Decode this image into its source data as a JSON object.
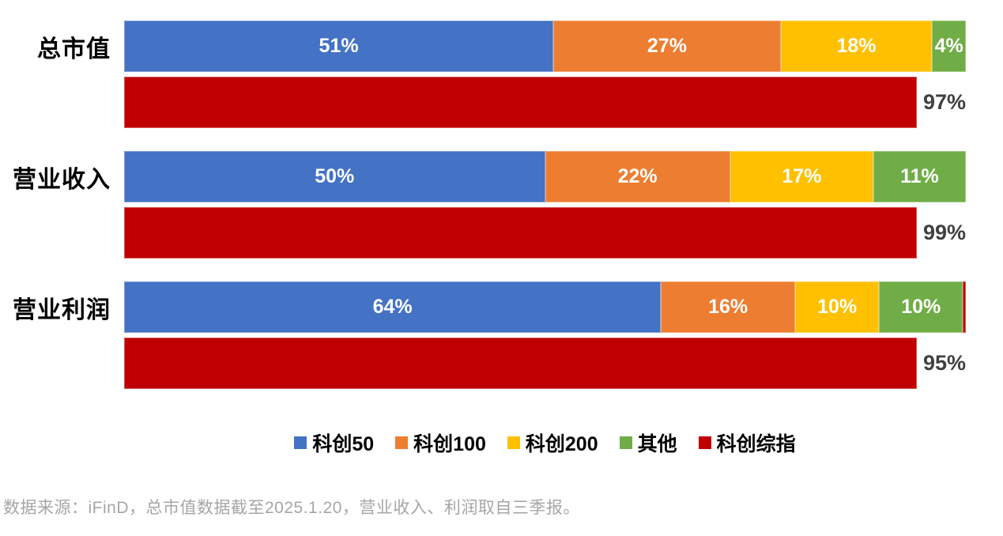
{
  "page": {
    "background": "#ffffff"
  },
  "colors": {
    "blue": "#4472C4",
    "orange": "#ED7D31",
    "yellow": "#FFC000",
    "green": "#70AD47",
    "red": "#C00000",
    "outside_label": "#404040",
    "footer_text": "#a6a6a6"
  },
  "chart_data": {
    "type": "bar",
    "orientation": "horizontal",
    "stacked": true,
    "grid": false,
    "axes_visible": false,
    "xlim": [
      0,
      100
    ],
    "value_suffix": "%",
    "legend_position": "bottom",
    "categories": [
      "总市值",
      "营业收入",
      "营业利润"
    ],
    "series": [
      {
        "name": "科创50",
        "color": "#4472C4",
        "values": [
          51,
          50,
          64
        ]
      },
      {
        "name": "科创100",
        "color": "#ED7D31",
        "values": [
          27,
          22,
          16
        ]
      },
      {
        "name": "科创200",
        "color": "#FFC000",
        "values": [
          18,
          17,
          10
        ]
      },
      {
        "name": "其他",
        "color": "#70AD47",
        "values": [
          4,
          11,
          10
        ]
      }
    ],
    "comparison_series": {
      "name": "科创综指",
      "color": "#C00000",
      "values": [
        97,
        99,
        95
      ],
      "label_position": "outside-right"
    },
    "extra_sliver": {
      "category_index": 2,
      "color": "#C00000",
      "value": 0.35
    }
  },
  "legend": {
    "items": [
      {
        "label": "科创50",
        "color": "#4472C4"
      },
      {
        "label": "科创100",
        "color": "#ED7D31"
      },
      {
        "label": "科创200",
        "color": "#FFC000"
      },
      {
        "label": "其他",
        "color": "#70AD47"
      },
      {
        "label": "科创综指",
        "color": "#C00000"
      }
    ]
  },
  "footer": {
    "source_note": "数据来源：iFinD，总市值数据截至2025.1.20，营业收入、利润取自三季报。"
  }
}
